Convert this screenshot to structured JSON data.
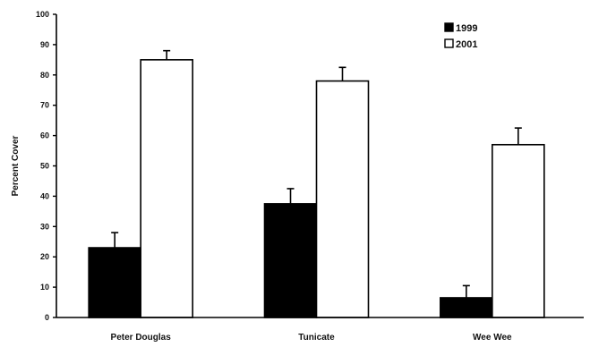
{
  "chart_data": {
    "type": "bar",
    "ylabel": "Percent Cover",
    "xlabel": "",
    "ylim": [
      0,
      100
    ],
    "yticks": [
      0,
      10,
      20,
      30,
      40,
      50,
      60,
      70,
      80,
      90,
      100
    ],
    "categories": [
      "Peter Douglas",
      "Tunicate",
      "Wee Wee"
    ],
    "series": [
      {
        "name": "1999",
        "values": [
          23,
          37.5,
          6.5
        ],
        "errors": [
          5,
          5,
          4
        ],
        "color": "#000000"
      },
      {
        "name": "2001",
        "values": [
          85,
          78,
          57
        ],
        "errors": [
          3,
          4.5,
          5.5
        ],
        "color": "#ffffff"
      }
    ],
    "legend": {
      "position": "top-right"
    },
    "grid": false,
    "error_bars": true
  }
}
